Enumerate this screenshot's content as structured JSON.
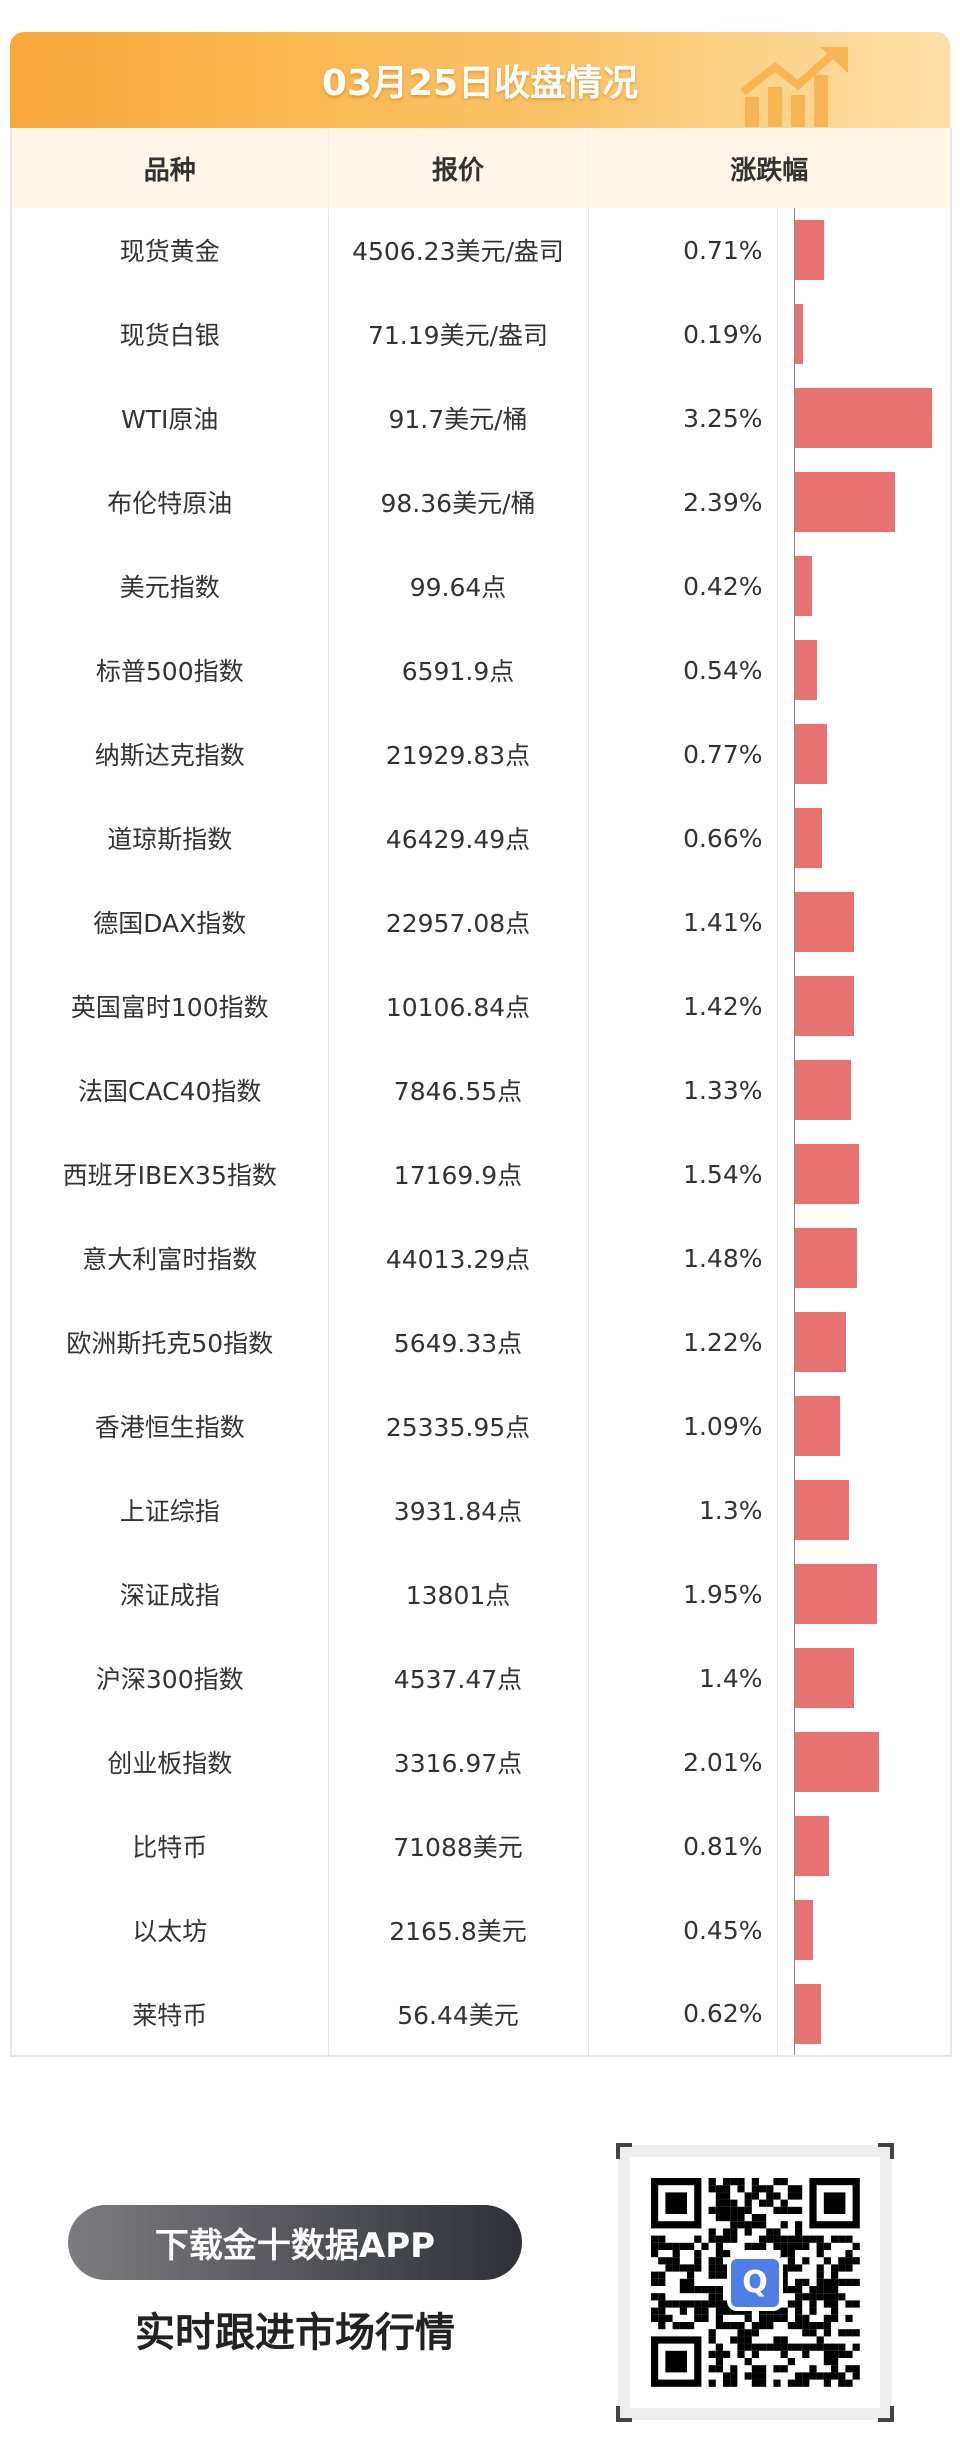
{
  "header": {
    "title": "03月25日收盘情况"
  },
  "columns": [
    "品种",
    "报价",
    "涨跌幅"
  ],
  "rows": [
    {
      "name": "现货黄金",
      "price": "4506.23美元/盎司",
      "change": "0.71%",
      "value": 0.71
    },
    {
      "name": "现货白银",
      "price": "71.19美元/盎司",
      "change": "0.19%",
      "value": 0.19
    },
    {
      "name": "WTI原油",
      "price": "91.7美元/桶",
      "change": "3.25%",
      "value": 3.25
    },
    {
      "name": "布伦特原油",
      "price": "98.36美元/桶",
      "change": "2.39%",
      "value": 2.39
    },
    {
      "name": "美元指数",
      "price": "99.64点",
      "change": "0.42%",
      "value": 0.42
    },
    {
      "name": "标普500指数",
      "price": "6591.9点",
      "change": "0.54%",
      "value": 0.54
    },
    {
      "name": "纳斯达克指数",
      "price": "21929.83点",
      "change": "0.77%",
      "value": 0.77
    },
    {
      "name": "道琼斯指数",
      "price": "46429.49点",
      "change": "0.66%",
      "value": 0.66
    },
    {
      "name": "德国DAX指数",
      "price": "22957.08点",
      "change": "1.41%",
      "value": 1.41
    },
    {
      "name": "英国富时100指数",
      "price": "10106.84点",
      "change": "1.42%",
      "value": 1.42
    },
    {
      "name": "法国CAC40指数",
      "price": "7846.55点",
      "change": "1.33%",
      "value": 1.33
    },
    {
      "name": "西班牙IBEX35指数",
      "price": "17169.9点",
      "change": "1.54%",
      "value": 1.54
    },
    {
      "name": "意大利富时指数",
      "price": "44013.29点",
      "change": "1.48%",
      "value": 1.48
    },
    {
      "name": "欧洲斯托克50指数",
      "price": "5649.33点",
      "change": "1.22%",
      "value": 1.22
    },
    {
      "name": "香港恒生指数",
      "price": "25335.95点",
      "change": "1.09%",
      "value": 1.09
    },
    {
      "name": "上证综指",
      "price": "3931.84点",
      "change": "1.3%",
      "value": 1.3
    },
    {
      "name": "深证成指",
      "price": "13801点",
      "change": "1.95%",
      "value": 1.95
    },
    {
      "name": "沪深300指数",
      "price": "4537.47点",
      "change": "1.4%",
      "value": 1.4
    },
    {
      "name": "创业板指数",
      "price": "3316.97点",
      "change": "2.01%",
      "value": 2.01
    },
    {
      "name": "比特币",
      "price": "71088美元",
      "change": "0.81%",
      "value": 0.81
    },
    {
      "name": "以太坊",
      "price": "2165.8美元",
      "change": "0.45%",
      "value": 0.45
    },
    {
      "name": "莱特币",
      "price": "56.44美元",
      "change": "0.62%",
      "value": 0.62
    }
  ],
  "bar_max": 3.25,
  "colors": {
    "bar": "#e87272",
    "banner": "#f9a93a"
  },
  "footer": {
    "download_label": "下载金十数据APP",
    "slogan": "实时跟进市场行情"
  }
}
